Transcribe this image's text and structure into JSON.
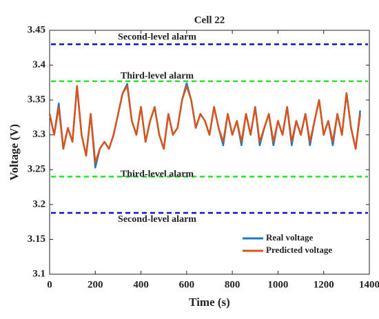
{
  "chart_data": {
    "type": "line",
    "title": "Cell 22",
    "x_label": "Time (s)",
    "y_label": "Voltage (V)",
    "x": [
      0,
      20,
      40,
      60,
      80,
      100,
      120,
      140,
      160,
      180,
      200,
      220,
      240,
      260,
      280,
      300,
      320,
      340,
      360,
      380,
      400,
      420,
      440,
      460,
      480,
      500,
      520,
      540,
      560,
      580,
      600,
      620,
      640,
      660,
      680,
      700,
      720,
      740,
      760,
      780,
      800,
      820,
      840,
      860,
      880,
      900,
      920,
      940,
      960,
      980,
      1000,
      1020,
      1040,
      1060,
      1080,
      1100,
      1120,
      1140,
      1160,
      1180,
      1200,
      1220,
      1240,
      1260,
      1280,
      1300,
      1320,
      1340,
      1360
    ],
    "series": [
      {
        "name": "Real voltage",
        "color": "#1f77c4",
        "values": [
          3.33,
          3.3,
          3.345,
          3.28,
          3.31,
          3.29,
          3.37,
          3.3,
          3.27,
          3.33,
          3.253,
          3.28,
          3.29,
          3.28,
          3.3,
          3.33,
          3.36,
          3.373,
          3.32,
          3.3,
          3.34,
          3.29,
          3.32,
          3.34,
          3.3,
          3.28,
          3.33,
          3.3,
          3.31,
          3.35,
          3.374,
          3.35,
          3.31,
          3.33,
          3.32,
          3.3,
          3.34,
          3.31,
          3.285,
          3.33,
          3.3,
          3.32,
          3.285,
          3.33,
          3.3,
          3.34,
          3.285,
          3.31,
          3.33,
          3.285,
          3.32,
          3.3,
          3.34,
          3.285,
          3.32,
          3.3,
          3.33,
          3.285,
          3.32,
          3.35,
          3.3,
          3.32,
          3.285,
          3.33,
          3.3,
          3.36,
          3.31,
          3.28,
          3.335
        ]
      },
      {
        "name": "Predicted voltage",
        "color": "#d9541a",
        "values": [
          3.33,
          3.3,
          3.34,
          3.28,
          3.31,
          3.29,
          3.37,
          3.3,
          3.27,
          3.33,
          3.26,
          3.28,
          3.29,
          3.28,
          3.3,
          3.33,
          3.36,
          3.37,
          3.32,
          3.3,
          3.34,
          3.29,
          3.32,
          3.34,
          3.3,
          3.28,
          3.33,
          3.3,
          3.31,
          3.35,
          3.37,
          3.35,
          3.31,
          3.33,
          3.32,
          3.3,
          3.34,
          3.31,
          3.29,
          3.33,
          3.3,
          3.32,
          3.29,
          3.33,
          3.3,
          3.34,
          3.29,
          3.31,
          3.33,
          3.29,
          3.32,
          3.3,
          3.34,
          3.29,
          3.32,
          3.3,
          3.33,
          3.29,
          3.32,
          3.35,
          3.3,
          3.32,
          3.29,
          3.33,
          3.3,
          3.36,
          3.31,
          3.28,
          3.33
        ]
      }
    ],
    "alarms": [
      {
        "label": "Second-level alarm",
        "value": 3.43,
        "color": "#1010d0"
      },
      {
        "label": "Third-level alarm",
        "value": 3.377,
        "color": "#22e622"
      },
      {
        "label": "Third-level alarm",
        "value": 3.24,
        "color": "#22e622"
      },
      {
        "label": "Second-level alarm",
        "value": 3.188,
        "color": "#1010d0"
      }
    ],
    "xlim": [
      0,
      1400
    ],
    "xticks": [
      0,
      200,
      400,
      600,
      800,
      1000,
      1200,
      1400
    ],
    "ylim": [
      3.1,
      3.45
    ],
    "yticks": [
      3.1,
      3.15,
      3.2,
      3.25,
      3.3,
      3.35,
      3.4,
      3.45
    ],
    "legend": "lower right"
  }
}
